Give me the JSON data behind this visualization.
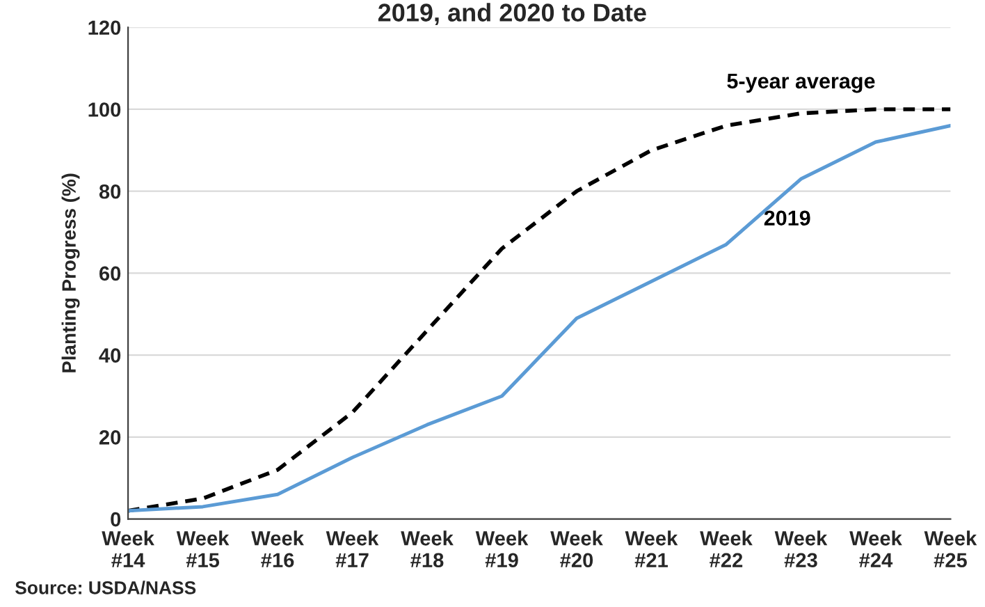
{
  "chart_data": {
    "type": "line",
    "title": "2019, and 2020 to Date",
    "ylabel": "Planting Progress (%)",
    "categories": [
      "Week\n#14",
      "Week\n#15",
      "Week\n#16",
      "Week\n#17",
      "Week\n#18",
      "Week\n#19",
      "Week\n#20",
      "Week\n#21",
      "Week\n#22",
      "Week\n#23",
      "Week\n#24",
      "Week\n#25"
    ],
    "series": [
      {
        "name": "5-year average",
        "color": "#000000",
        "line_style": "dashed",
        "values": [
          2,
          5,
          12,
          26,
          46,
          66,
          80,
          90,
          96,
          99,
          100,
          100
        ]
      },
      {
        "name": "2019",
        "color": "#5b9bd5",
        "line_style": "solid",
        "values": [
          2,
          3,
          6,
          15,
          23,
          30,
          49,
          58,
          67,
          83,
          92,
          96
        ]
      }
    ],
    "ylim": [
      0,
      120
    ],
    "yticks": [
      0,
      20,
      40,
      60,
      80,
      100,
      120
    ],
    "grid": "y",
    "legend": false,
    "annotations": [
      "Source: USDA/NASS"
    ]
  }
}
